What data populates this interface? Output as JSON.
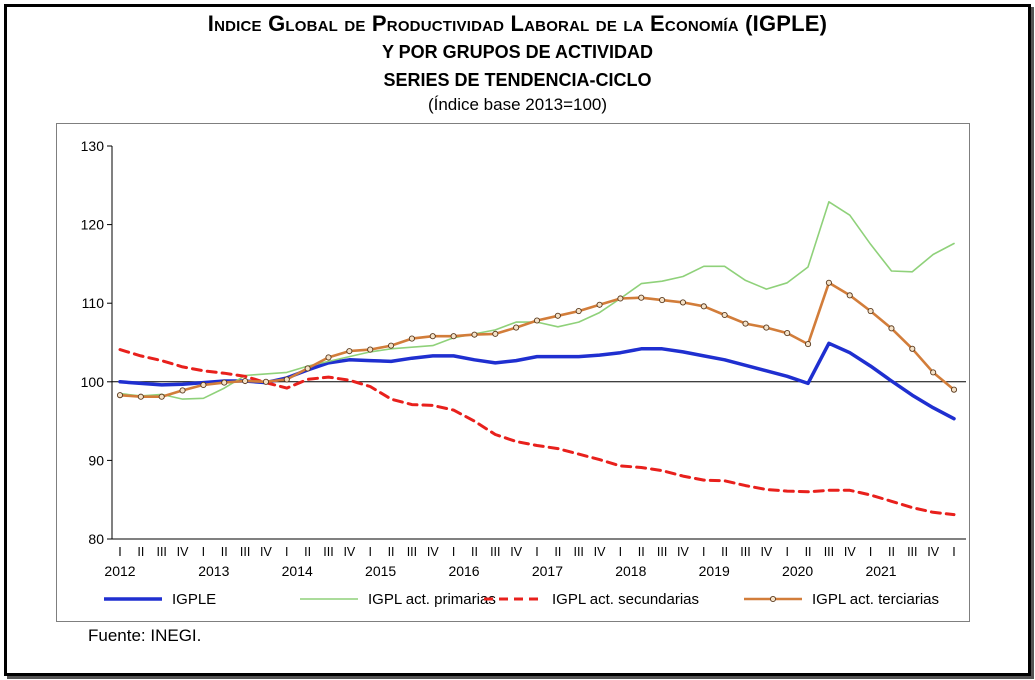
{
  "titles": {
    "line1": "Indice Global de Productividad Laboral de la Economía (IGPLE)",
    "line2": "Y POR GRUPOS DE ACTIVIDAD",
    "line3": "SERIES DE TENDENCIA-CICLO",
    "line4": "(Índice base 2013=100)"
  },
  "source": "Fuente: INEGI.",
  "chart_data": {
    "type": "line",
    "title": "Indice Global de Productividad Laboral de la Economía (IGPLE) Y POR GRUPOS DE ACTIVIDAD SERIES DE TENDENCIA-CICLO (Índice base 2013=100)",
    "xlabel": "",
    "ylabel": "",
    "ylim": [
      80,
      130
    ],
    "yticks": [
      80,
      90,
      100,
      110,
      120,
      130
    ],
    "reference_line": 100,
    "grid": false,
    "legend_position": "bottom",
    "quarters": [
      "I",
      "II",
      "III",
      "IV"
    ],
    "years": [
      "2012",
      "2013",
      "2014",
      "2015",
      "2016",
      "2017",
      "2018",
      "2019",
      "2020",
      "2021"
    ],
    "series": [
      {
        "name": "IGPLE",
        "color": "#1f2fd0",
        "style": "solid-thick",
        "values": [
          100.0,
          99.8,
          99.6,
          99.7,
          99.9,
          100.1,
          100.1,
          99.9,
          100.5,
          101.5,
          102.4,
          102.8,
          102.7,
          102.6,
          103.0,
          103.3,
          103.3,
          102.8,
          102.4,
          102.7,
          103.2,
          103.2,
          103.2,
          103.4,
          103.7,
          104.2,
          104.2,
          103.8,
          103.3,
          102.8,
          102.1,
          101.4,
          100.7,
          99.8,
          104.9,
          103.7,
          102.0,
          100.1,
          98.3,
          96.7,
          95.3
        ]
      },
      {
        "name": "IGPL act. primarias",
        "color": "#8fd17a",
        "style": "solid-thin",
        "values": [
          98.5,
          98.2,
          98.4,
          97.8,
          97.9,
          99.2,
          100.8,
          101.0,
          101.2,
          102.0,
          102.6,
          103.2,
          103.8,
          104.2,
          104.4,
          104.6,
          105.6,
          106.1,
          106.6,
          107.6,
          107.6,
          107.0,
          107.6,
          108.8,
          110.6,
          112.5,
          112.8,
          113.4,
          114.7,
          114.7,
          112.9,
          111.8,
          112.6,
          114.6,
          122.9,
          121.2,
          117.5,
          114.1,
          114.0,
          116.2,
          117.6
        ]
      },
      {
        "name": "IGPL act. secundarias",
        "color": "#e8201c",
        "style": "dashed",
        "values": [
          104.1,
          103.3,
          102.7,
          101.9,
          101.4,
          101.1,
          100.7,
          99.9,
          99.2,
          100.3,
          100.6,
          100.2,
          99.4,
          97.8,
          97.1,
          97.0,
          96.4,
          95.0,
          93.3,
          92.4,
          91.9,
          91.5,
          90.8,
          90.1,
          89.3,
          89.1,
          88.7,
          88.0,
          87.5,
          87.4,
          86.8,
          86.3,
          86.1,
          86.0,
          86.2,
          86.2,
          85.6,
          84.8,
          84.0,
          83.4,
          83.1
        ]
      },
      {
        "name": "IGPL act. terciarias",
        "color": "#d27d3a",
        "style": "solid-markers",
        "values": [
          98.3,
          98.1,
          98.1,
          98.9,
          99.6,
          99.9,
          100.1,
          100.0,
          100.3,
          101.7,
          103.1,
          103.9,
          104.1,
          104.6,
          105.5,
          105.8,
          105.8,
          106.0,
          106.1,
          106.9,
          107.8,
          108.4,
          109.0,
          109.8,
          110.6,
          110.7,
          110.4,
          110.1,
          109.6,
          108.5,
          107.4,
          106.9,
          106.2,
          104.8,
          112.6,
          111.0,
          109.0,
          106.8,
          104.2,
          101.2,
          99.0
        ]
      }
    ]
  }
}
